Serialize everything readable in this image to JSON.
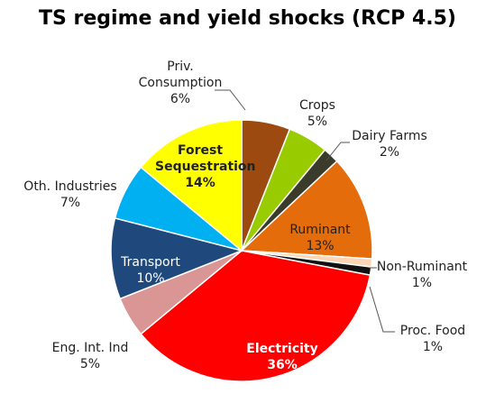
{
  "chart_data": {
    "type": "pie",
    "title": "TS regime and yield shocks (RCP 4.5)",
    "categories": [
      "Priv. Consumption",
      "Crops",
      "Dairy Farms",
      "Ruminant",
      "Non-Ruminant",
      "Proc. Food",
      "Electricity",
      "Eng. Int. Ind",
      "Transport",
      "Oth. Industries",
      "Forest Sequestration"
    ],
    "values": [
      6,
      5,
      2,
      13,
      1,
      1,
      36,
      5,
      10,
      7,
      14
    ],
    "value_labels": [
      "6%",
      "5%",
      "2%",
      "13%",
      "1%",
      "1%",
      "36%",
      "5%",
      "10%",
      "7%",
      "14%"
    ],
    "colors": [
      "#9c4a0f",
      "#99cc00",
      "#3b3b2c",
      "#e46c0a",
      "#fbd5b5",
      "#111111",
      "#ff0000",
      "#d99694",
      "#1f497d",
      "#00b0f0",
      "#ffff00"
    ]
  }
}
